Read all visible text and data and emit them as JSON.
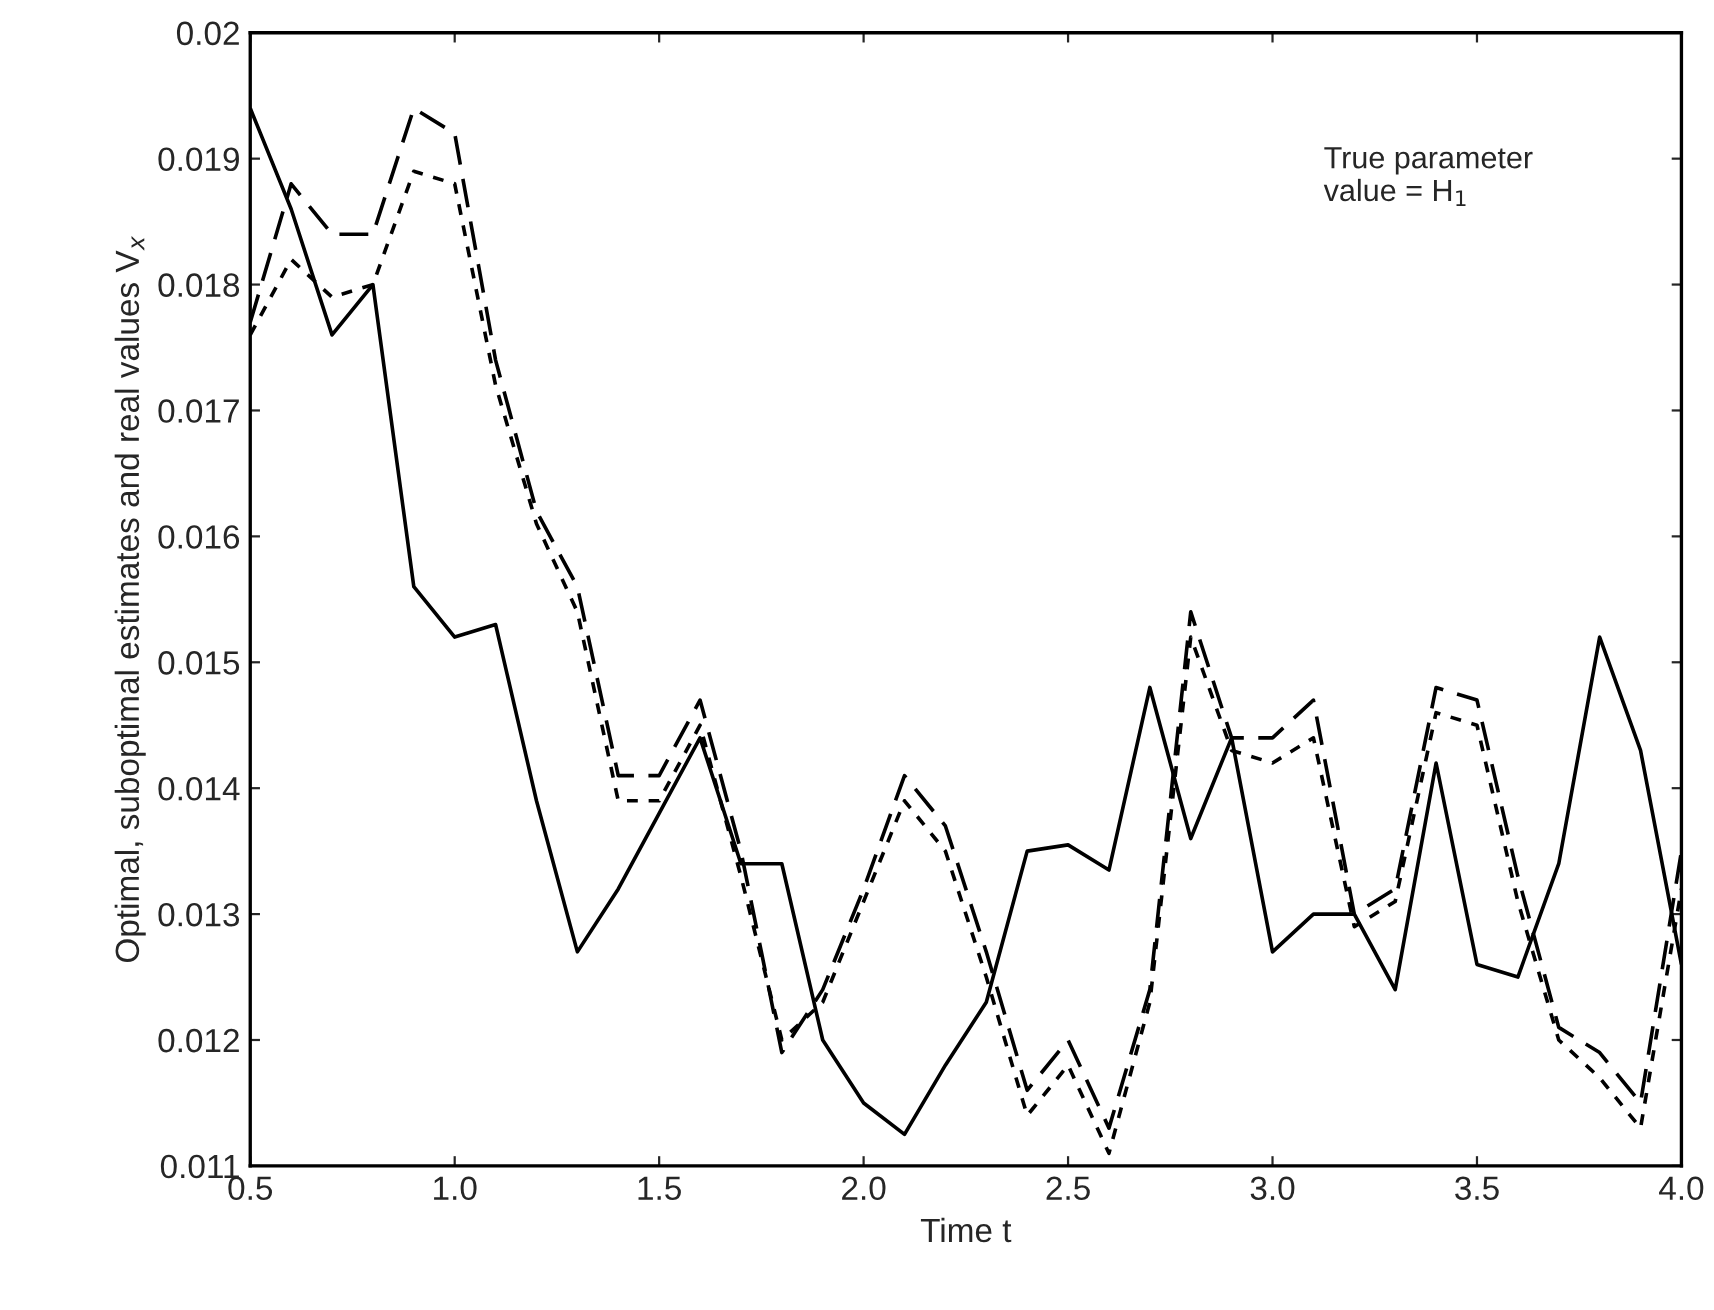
{
  "chart_data": {
    "type": "line",
    "xlabel": "Time t",
    "ylabel": "Optimal, suboptimal estimates and real values V$_{x}$",
    "annotations": [
      "True parameter\nvalue = H$_{1}$"
    ],
    "x": [
      0.5,
      0.6,
      0.7,
      0.8,
      0.9,
      1.0,
      1.1,
      1.2,
      1.3,
      1.4,
      1.5,
      1.6,
      1.7,
      1.8,
      1.9,
      2.0,
      2.1,
      2.2,
      2.3,
      2.4,
      2.5,
      2.6,
      2.7,
      2.8,
      2.9,
      3.0,
      3.1,
      3.2,
      3.3,
      3.4,
      3.5,
      3.6,
      3.7,
      3.8,
      3.9,
      4.0
    ],
    "series": [
      {
        "color": "#000000",
        "line_style": "solid",
        "values": [
          0.0194,
          0.0186,
          0.0176,
          0.018,
          0.0156,
          0.0152,
          0.0153,
          0.0139,
          0.0127,
          0.0132,
          0.0138,
          0.0144,
          0.0134,
          0.0134,
          0.012,
          0.0115,
          0.01125,
          0.0118,
          0.0123,
          0.0135,
          0.01355,
          0.01335,
          0.0148,
          0.0136,
          0.0144,
          0.0127,
          0.013,
          0.013,
          0.0124,
          0.0142,
          0.0126,
          0.0125,
          0.0134,
          0.0152,
          0.0143,
          0.0126
        ]
      },
      {
        "color": "#000000",
        "line_style": "dashed",
        "values": [
          0.0177,
          0.0188,
          0.0184,
          0.0184,
          0.0194,
          0.0192,
          0.0174,
          0.0162,
          0.0156,
          0.0141,
          0.0141,
          0.0147,
          0.0135,
          0.0119,
          0.0124,
          0.0132,
          0.0141,
          0.0137,
          0.0127,
          0.0116,
          0.012,
          0.0113,
          0.0124,
          0.0154,
          0.0144,
          0.0144,
          0.0147,
          0.013,
          0.0132,
          0.0148,
          0.0147,
          0.0133,
          0.0121,
          0.0119,
          0.0115,
          0.0135
        ]
      },
      {
        "color": "#000000",
        "line_style": "dotted",
        "values": [
          0.0176,
          0.0182,
          0.0179,
          0.018,
          0.0189,
          0.0188,
          0.0172,
          0.0161,
          0.0154,
          0.0139,
          0.0139,
          0.0145,
          0.0133,
          0.012,
          0.0123,
          0.0131,
          0.0139,
          0.0135,
          0.0125,
          0.0114,
          0.0118,
          0.0111,
          0.0123,
          0.0152,
          0.0143,
          0.0142,
          0.0144,
          0.0129,
          0.0131,
          0.0146,
          0.0145,
          0.0131,
          0.012,
          0.0117,
          0.0113,
          0.0132
        ]
      }
    ],
    "xlim": [
      0.5,
      4.0
    ],
    "xticks": [
      0.5,
      {
        "value": 1.0,
        "label": "1.0"
      },
      1.5,
      {
        "value": 2.0,
        "label": "2.0"
      },
      2.5,
      {
        "value": 3.0,
        "label": "3.0"
      },
      3.5,
      {
        "value": 4.0,
        "label": "4.0"
      }
    ],
    "ylim": [
      0.011,
      0.02
    ],
    "yticks": [
      0.011,
      0.012,
      0.013,
      0.014,
      0.015,
      0.016,
      0.017,
      0.018,
      0.019,
      0.02
    ],
    "grid": false,
    "legend": false,
    "marker": "none"
  }
}
